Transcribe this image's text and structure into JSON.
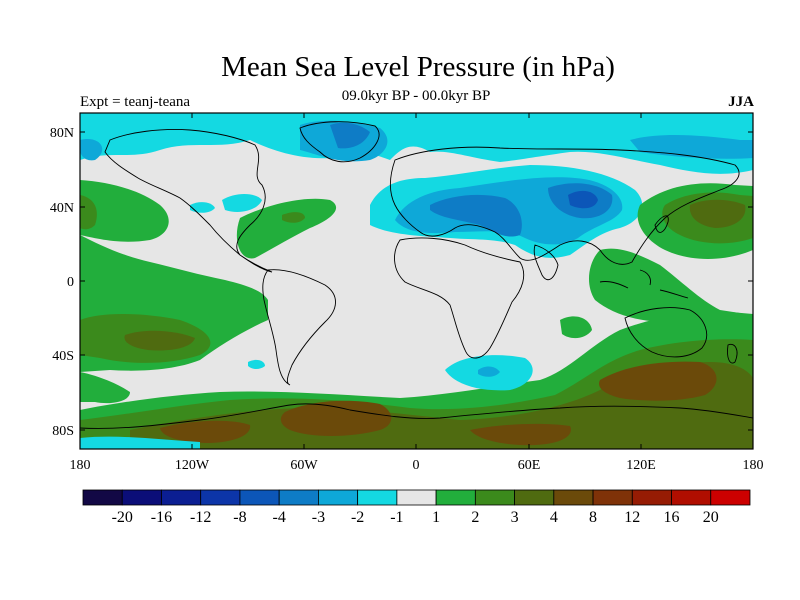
{
  "title": "Mean Sea Level Pressure (in hPa)",
  "experiment": "Expt = teanj-teana",
  "period": "09.0kyr BP - 00.0kyr BP",
  "season": "JJA",
  "lat_labels": [
    "80N",
    "40N",
    "0",
    "40S",
    "80S"
  ],
  "lon_labels": [
    "180",
    "120W",
    "60W",
    "0",
    "60E",
    "120E",
    "180"
  ],
  "colorbar": {
    "labels": [
      "-20",
      "-16",
      "-12",
      "-8",
      "-4",
      "-3",
      "-2",
      "-1",
      "1",
      "2",
      "3",
      "4",
      "8",
      "12",
      "16",
      "20"
    ],
    "colors": [
      "#120845",
      "#0b0e78",
      "#0b1e92",
      "#0c35a8",
      "#0c56b8",
      "#0e7cc6",
      "#0ea8d8",
      "#14d9e2",
      "#e6e6e6",
      "#22ae3c",
      "#3b8a1c",
      "#4f6b10",
      "#6b4a0a",
      "#7f3208",
      "#961c04",
      "#b00e00",
      "#cc0000"
    ]
  },
  "palette": {
    "neutral": "#e6e6e6",
    "green": "#22ae3c",
    "olive": "#3b8a1c",
    "darkolive": "#4f6b10",
    "brown": "#6b4a0a",
    "cyan": "#14d9e2",
    "lightblue": "#0ea8d8",
    "blue": "#0e7cc6",
    "darkblue": "#0c56b8"
  }
}
